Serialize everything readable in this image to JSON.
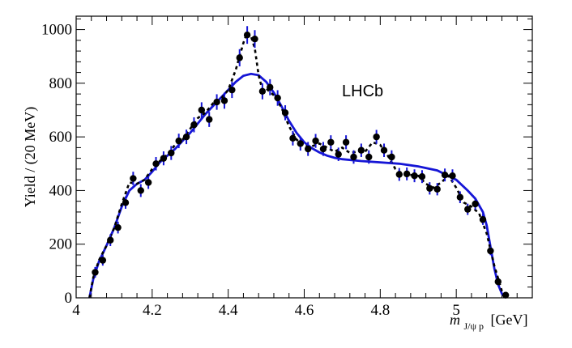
{
  "chart_data": {
    "type": "line",
    "title": "",
    "annotation": "LHCb",
    "xlabel": {
      "var": "m",
      "sub": "J/ψ p",
      "unit": "[GeV]"
    },
    "ylabel": "Yield / (20 MeV)",
    "xlim": [
      4.0,
      5.2
    ],
    "ylim": [
      0,
      1050
    ],
    "x_ticks": [
      4,
      4.2,
      4.4,
      4.6,
      4.8,
      5
    ],
    "x_tick_labels": [
      "4",
      "4.2",
      "4.4",
      "4.6",
      "4.8",
      "5"
    ],
    "y_ticks": [
      0,
      200,
      400,
      600,
      800,
      1000
    ],
    "y_tick_labels": [
      "0",
      "200",
      "400",
      "600",
      "800",
      "1000"
    ],
    "grid": false,
    "colors": {
      "fit": "#1515d6",
      "data": "#000000",
      "errorbar": "#1515d6",
      "model": "#000000"
    },
    "series": [
      {
        "kind": "points",
        "points": [
          [
            4.05,
            95
          ],
          [
            4.07,
            140
          ],
          [
            4.09,
            215
          ],
          [
            4.11,
            262
          ],
          [
            4.13,
            355
          ],
          [
            4.15,
            445
          ],
          [
            4.17,
            400
          ],
          [
            4.19,
            430
          ],
          [
            4.21,
            500
          ],
          [
            4.23,
            520
          ],
          [
            4.25,
            540
          ],
          [
            4.27,
            585
          ],
          [
            4.29,
            600
          ],
          [
            4.31,
            645
          ],
          [
            4.33,
            700
          ],
          [
            4.35,
            665
          ],
          [
            4.37,
            730
          ],
          [
            4.39,
            735
          ],
          [
            4.41,
            775
          ],
          [
            4.43,
            895
          ],
          [
            4.45,
            980
          ],
          [
            4.47,
            965
          ],
          [
            4.49,
            770
          ],
          [
            4.51,
            785
          ],
          [
            4.53,
            745
          ],
          [
            4.55,
            690
          ],
          [
            4.57,
            595
          ],
          [
            4.59,
            575
          ],
          [
            4.61,
            555
          ],
          [
            4.63,
            585
          ],
          [
            4.65,
            555
          ],
          [
            4.67,
            580
          ],
          [
            4.69,
            535
          ],
          [
            4.71,
            580
          ],
          [
            4.73,
            525
          ],
          [
            4.75,
            550
          ],
          [
            4.77,
            525
          ],
          [
            4.79,
            600
          ],
          [
            4.81,
            550
          ],
          [
            4.83,
            525
          ],
          [
            4.85,
            460
          ],
          [
            4.87,
            462
          ],
          [
            4.89,
            455
          ],
          [
            4.91,
            452
          ],
          [
            4.93,
            408
          ],
          [
            4.95,
            405
          ],
          [
            4.97,
            458
          ],
          [
            4.99,
            455
          ],
          [
            5.01,
            375
          ],
          [
            5.03,
            330
          ],
          [
            5.05,
            350
          ],
          [
            5.07,
            292
          ],
          [
            5.09,
            175
          ],
          [
            5.11,
            60
          ],
          [
            5.13,
            10
          ]
        ],
        "errors": [
          20,
          20,
          22,
          22,
          23,
          25,
          24,
          24,
          25,
          26,
          26,
          27,
          27,
          28,
          29,
          28,
          29,
          30,
          30,
          32,
          33,
          33,
          30,
          30,
          29,
          28,
          27,
          26,
          26,
          26,
          26,
          26,
          25,
          26,
          25,
          25,
          25,
          26,
          25,
          25,
          24,
          24,
          24,
          24,
          23,
          23,
          24,
          24,
          22,
          21,
          21,
          20,
          16,
          10,
          5
        ]
      },
      {
        "kind": "fit-solid",
        "points": [
          [
            4.035,
            0
          ],
          [
            4.045,
            70
          ],
          [
            4.06,
            135
          ],
          [
            4.08,
            195
          ],
          [
            4.1,
            260
          ],
          [
            4.12,
            340
          ],
          [
            4.14,
            400
          ],
          [
            4.16,
            425
          ],
          [
            4.18,
            440
          ],
          [
            4.2,
            470
          ],
          [
            4.22,
            505
          ],
          [
            4.24,
            530
          ],
          [
            4.26,
            555
          ],
          [
            4.28,
            585
          ],
          [
            4.3,
            615
          ],
          [
            4.32,
            650
          ],
          [
            4.34,
            685
          ],
          [
            4.36,
            715
          ],
          [
            4.38,
            745
          ],
          [
            4.4,
            775
          ],
          [
            4.42,
            805
          ],
          [
            4.44,
            828
          ],
          [
            4.46,
            835
          ],
          [
            4.48,
            830
          ],
          [
            4.5,
            805
          ],
          [
            4.52,
            765
          ],
          [
            4.54,
            715
          ],
          [
            4.56,
            660
          ],
          [
            4.58,
            615
          ],
          [
            4.6,
            580
          ],
          [
            4.62,
            558
          ],
          [
            4.64,
            542
          ],
          [
            4.66,
            530
          ],
          [
            4.68,
            522
          ],
          [
            4.7,
            517
          ],
          [
            4.75,
            510
          ],
          [
            4.8,
            505
          ],
          [
            4.85,
            500
          ],
          [
            4.9,
            490
          ],
          [
            4.95,
            475
          ],
          [
            5.0,
            440
          ],
          [
            5.03,
            400
          ],
          [
            5.05,
            370
          ],
          [
            5.07,
            320
          ],
          [
            5.08,
            270
          ],
          [
            5.09,
            190
          ],
          [
            5.1,
            110
          ],
          [
            5.11,
            50
          ],
          [
            5.12,
            15
          ],
          [
            5.13,
            0
          ]
        ]
      },
      {
        "kind": "model-dashed",
        "points": [
          [
            4.035,
            0
          ],
          [
            4.045,
            75
          ],
          [
            4.06,
            140
          ],
          [
            4.08,
            195
          ],
          [
            4.1,
            260
          ],
          [
            4.12,
            350
          ],
          [
            4.14,
            430
          ],
          [
            4.16,
            425
          ],
          [
            4.18,
            440
          ],
          [
            4.2,
            480
          ],
          [
            4.22,
            510
          ],
          [
            4.24,
            535
          ],
          [
            4.26,
            570
          ],
          [
            4.28,
            590
          ],
          [
            4.3,
            630
          ],
          [
            4.32,
            670
          ],
          [
            4.34,
            690
          ],
          [
            4.36,
            725
          ],
          [
            4.38,
            740
          ],
          [
            4.4,
            775
          ],
          [
            4.42,
            850
          ],
          [
            4.44,
            950
          ],
          [
            4.45,
            990
          ],
          [
            4.46,
            975
          ],
          [
            4.47,
            930
          ],
          [
            4.48,
            830
          ],
          [
            4.49,
            775
          ],
          [
            4.5,
            780
          ],
          [
            4.52,
            755
          ],
          [
            4.54,
            710
          ],
          [
            4.56,
            640
          ],
          [
            4.58,
            590
          ],
          [
            4.6,
            565
          ],
          [
            4.62,
            565
          ],
          [
            4.64,
            575
          ],
          [
            4.66,
            560
          ],
          [
            4.68,
            545
          ],
          [
            4.7,
            560
          ],
          [
            4.72,
            540
          ],
          [
            4.74,
            545
          ],
          [
            4.76,
            545
          ],
          [
            4.78,
            580
          ],
          [
            4.8,
            570
          ],
          [
            4.82,
            530
          ],
          [
            4.84,
            480
          ],
          [
            4.86,
            462
          ],
          [
            4.88,
            458
          ],
          [
            4.9,
            455
          ],
          [
            4.92,
            425
          ],
          [
            4.94,
            410
          ],
          [
            4.96,
            430
          ],
          [
            4.98,
            455
          ],
          [
            5.0,
            410
          ],
          [
            5.02,
            355
          ],
          [
            5.04,
            340
          ],
          [
            5.06,
            315
          ],
          [
            5.08,
            240
          ],
          [
            5.1,
            120
          ],
          [
            5.12,
            25
          ],
          [
            5.13,
            0
          ]
        ]
      }
    ]
  }
}
